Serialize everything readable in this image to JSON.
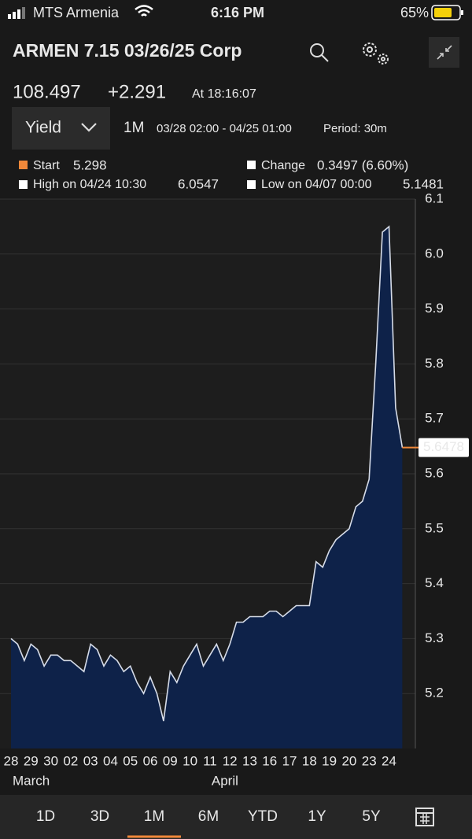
{
  "status_bar": {
    "carrier": "MTS Armenia",
    "time": "6:16 PM",
    "battery": "65%"
  },
  "header": {
    "title": "ARMEN 7.15 03/26/25 Corp"
  },
  "quote": {
    "price": "108.497",
    "change": "+2.291",
    "time": "At 18:16:07"
  },
  "controls": {
    "field": "Yield",
    "range": "1M",
    "dates": "03/28 02:00 - 04/25 01:00",
    "period": "Period: 30m"
  },
  "stats": {
    "start_label": "Start",
    "start": "5.298",
    "change_label": "Change",
    "change": "0.3497 (6.60%)",
    "high_label": "High on 04/24 10:30",
    "high": "6.0547",
    "low_label": "Low on 04/07 00:00",
    "low": "5.1481"
  },
  "chart_data": {
    "type": "area",
    "categories": [
      "28",
      null,
      null,
      "29",
      null,
      null,
      "30",
      null,
      null,
      "02",
      null,
      null,
      "03",
      null,
      null,
      "04",
      null,
      null,
      "05",
      null,
      null,
      "06",
      null,
      null,
      "09",
      null,
      null,
      "10",
      null,
      null,
      "11",
      null,
      null,
      "12",
      null,
      null,
      "13",
      null,
      null,
      "16",
      null,
      null,
      "17",
      null,
      null,
      "18",
      null,
      null,
      "19",
      null,
      null,
      "20",
      null,
      null,
      "23",
      null,
      null,
      "24",
      null,
      null
    ],
    "values": [
      5.3,
      5.29,
      5.26,
      5.29,
      5.28,
      5.25,
      5.27,
      5.27,
      5.26,
      5.26,
      5.25,
      5.24,
      5.29,
      5.28,
      5.25,
      5.27,
      5.26,
      5.24,
      5.25,
      5.22,
      5.2,
      5.23,
      5.2,
      5.15,
      5.24,
      5.22,
      5.25,
      5.27,
      5.29,
      5.25,
      5.27,
      5.29,
      5.26,
      5.29,
      5.33,
      5.33,
      5.34,
      5.34,
      5.34,
      5.35,
      5.35,
      5.34,
      5.35,
      5.36,
      5.36,
      5.36,
      5.44,
      5.43,
      5.46,
      5.48,
      5.49,
      5.5,
      5.54,
      5.55,
      5.59,
      5.8,
      6.04,
      6.05,
      5.72,
      5.6478
    ],
    "x_groups": [
      "March",
      "April"
    ],
    "last_value": 5.6478,
    "color": "#0e2249",
    "line_color": "#d6dce8",
    "last_color": "#f0883a",
    "ylim": [
      5.1,
      6.1
    ],
    "yticks": [
      5.2,
      5.3,
      5.4,
      5.5,
      5.6,
      5.7,
      5.8,
      5.9,
      {
        "value": 6.0,
        "label": "6.0"
      },
      6.1
    ],
    "grid": true
  },
  "tabs": [
    "1D",
    "3D",
    "1M",
    "6M",
    "YTD",
    "1Y",
    "5Y"
  ]
}
